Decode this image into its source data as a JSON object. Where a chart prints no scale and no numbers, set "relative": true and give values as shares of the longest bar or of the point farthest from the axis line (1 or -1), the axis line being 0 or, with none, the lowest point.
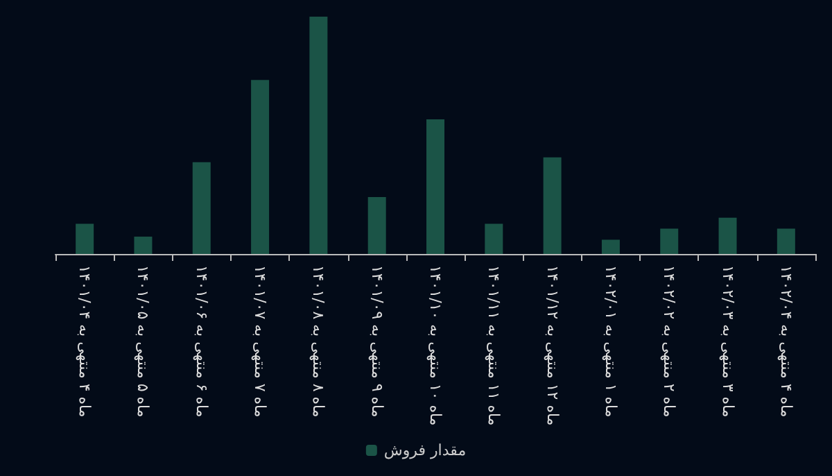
{
  "chart_data": {
    "type": "bar",
    "relative": true,
    "categories": [
      "ماه ۴ منتهی به ۱۴۰۱/۰۴",
      "ماه ۵ منتهی به ۱۴۰۱/۰۵",
      "ماه ۶ منتهی به ۱۴۰۱/۰۶",
      "ماه ۷ منتهی به ۱۴۰۱/۰۷",
      "ماه ۸ منتهی به ۱۴۰۱/۰۸",
      "ماه ۹ منتهی به ۱۴۰۱/۰۹",
      "ماه ۱۰ منتهی به ۱۴۰۱/۱۰",
      "ماه ۱۱ منتهی به ۱۴۰۱/۱۱",
      "ماه ۱۲ منتهی به ۱۴۰۱/۱۲",
      "ماه ۱ منتهی به ۱۴۰۲/۰۱",
      "ماه ۲ منتهی به ۱۴۰۲/۰۲",
      "ماه ۳ منتهی به ۱۴۰۲/۰۳",
      "ماه ۴ منتهی به ۱۴۰۲/۰۴"
    ],
    "series": [
      {
        "name": "مقدار فروش",
        "color": "#1b5447",
        "values": [
          0.127,
          0.073,
          0.387,
          0.733,
          1,
          0.24,
          0.567,
          0.127,
          0.407,
          0.06,
          0.107,
          0.153,
          0.107
        ]
      }
    ],
    "legend": "bottom",
    "grid": false
  }
}
